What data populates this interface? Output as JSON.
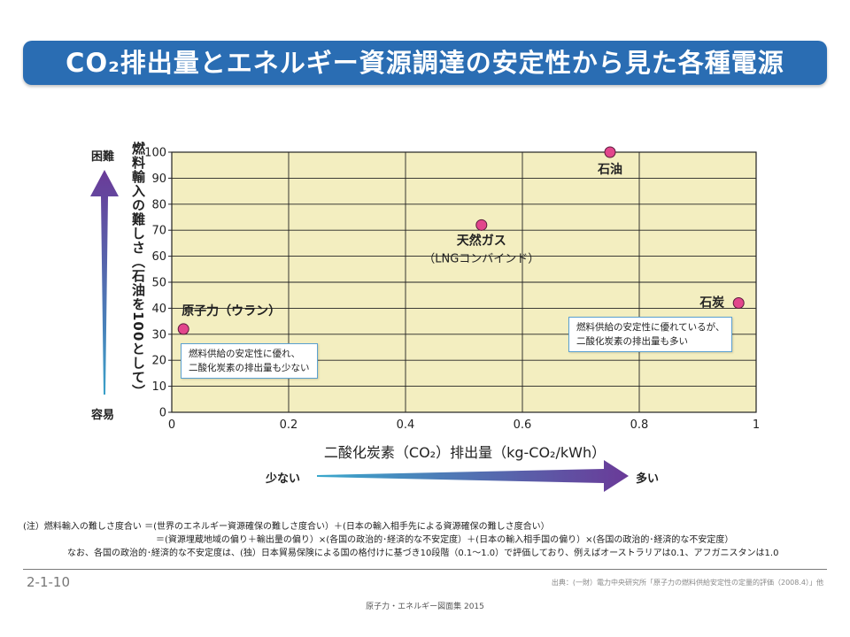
{
  "title": "CO₂排出量とエネルギー資源調達の安定性から見た各種電源",
  "chart_data": {
    "type": "scatter",
    "xlabel": "二酸化炭素（CO₂）排出量（kg-CO₂/kWh）",
    "ylabel": "燃料輸入の難しさ（石油を100として）",
    "xlim": [
      0,
      1
    ],
    "ylim": [
      0,
      100
    ],
    "x_ticks": [
      "0",
      "0.2",
      "0.4",
      "0.6",
      "0.8",
      "1"
    ],
    "y_ticks": [
      "0",
      "10",
      "20",
      "30",
      "40",
      "50",
      "60",
      "70",
      "80",
      "90",
      "100"
    ],
    "grid": true,
    "points": [
      {
        "label": "原子力（ウラン）",
        "x": 0.02,
        "y": 32
      },
      {
        "label": "天然ガス",
        "sublabel": "（LNGコンバインド）",
        "x": 0.53,
        "y": 72
      },
      {
        "label": "石油",
        "x": 0.75,
        "y": 100
      },
      {
        "label": "石炭",
        "x": 0.97,
        "y": 42
      }
    ],
    "colors": {
      "plot_bg": "#f3eec0",
      "point": "#e2468c",
      "grid": "#222222"
    }
  },
  "y_arrow": {
    "top_label": "困難",
    "bottom_label": "容易"
  },
  "x_arrow": {
    "left_label": "少ない",
    "right_label": "多い"
  },
  "notes": {
    "nuclear": [
      "燃料供給の安定性に優れ、",
      "二酸化炭素の排出量も少ない"
    ],
    "coal": [
      "燃料供給の安定性に優れているが、",
      "二酸化炭素の排出量も多い"
    ]
  },
  "footnote": {
    "line1": "(注）燃料輸入の難しさ度合い ＝(世界のエネルギー資源確保の難しさ度合い）＋(日本の輸入相手先による資源確保の難しさ度合い）",
    "line2": "＝(資源埋蔵地域の偏り＋輸出量の偏り）×(各国の政治的･経済的な不安定度）＋(日本の輸入相手国の偏り）×(各国の政治的･経済的な不安定度）",
    "line3": "なお、各国の政治的･経済的な不安定度は、(独）日本貿易保険による国の格付けに基づき10段階（0.1～1.0）で評価しており、例えばオーストラリアは0.1、アフガニスタンは1.0"
  },
  "page_number": "2-1-10",
  "source": "出典：(一財）電力中央研究所「原子力の燃料供給安定性の定量的評価（2008.4）」他",
  "book_title": "原子力・エネルギー図面集 2015"
}
